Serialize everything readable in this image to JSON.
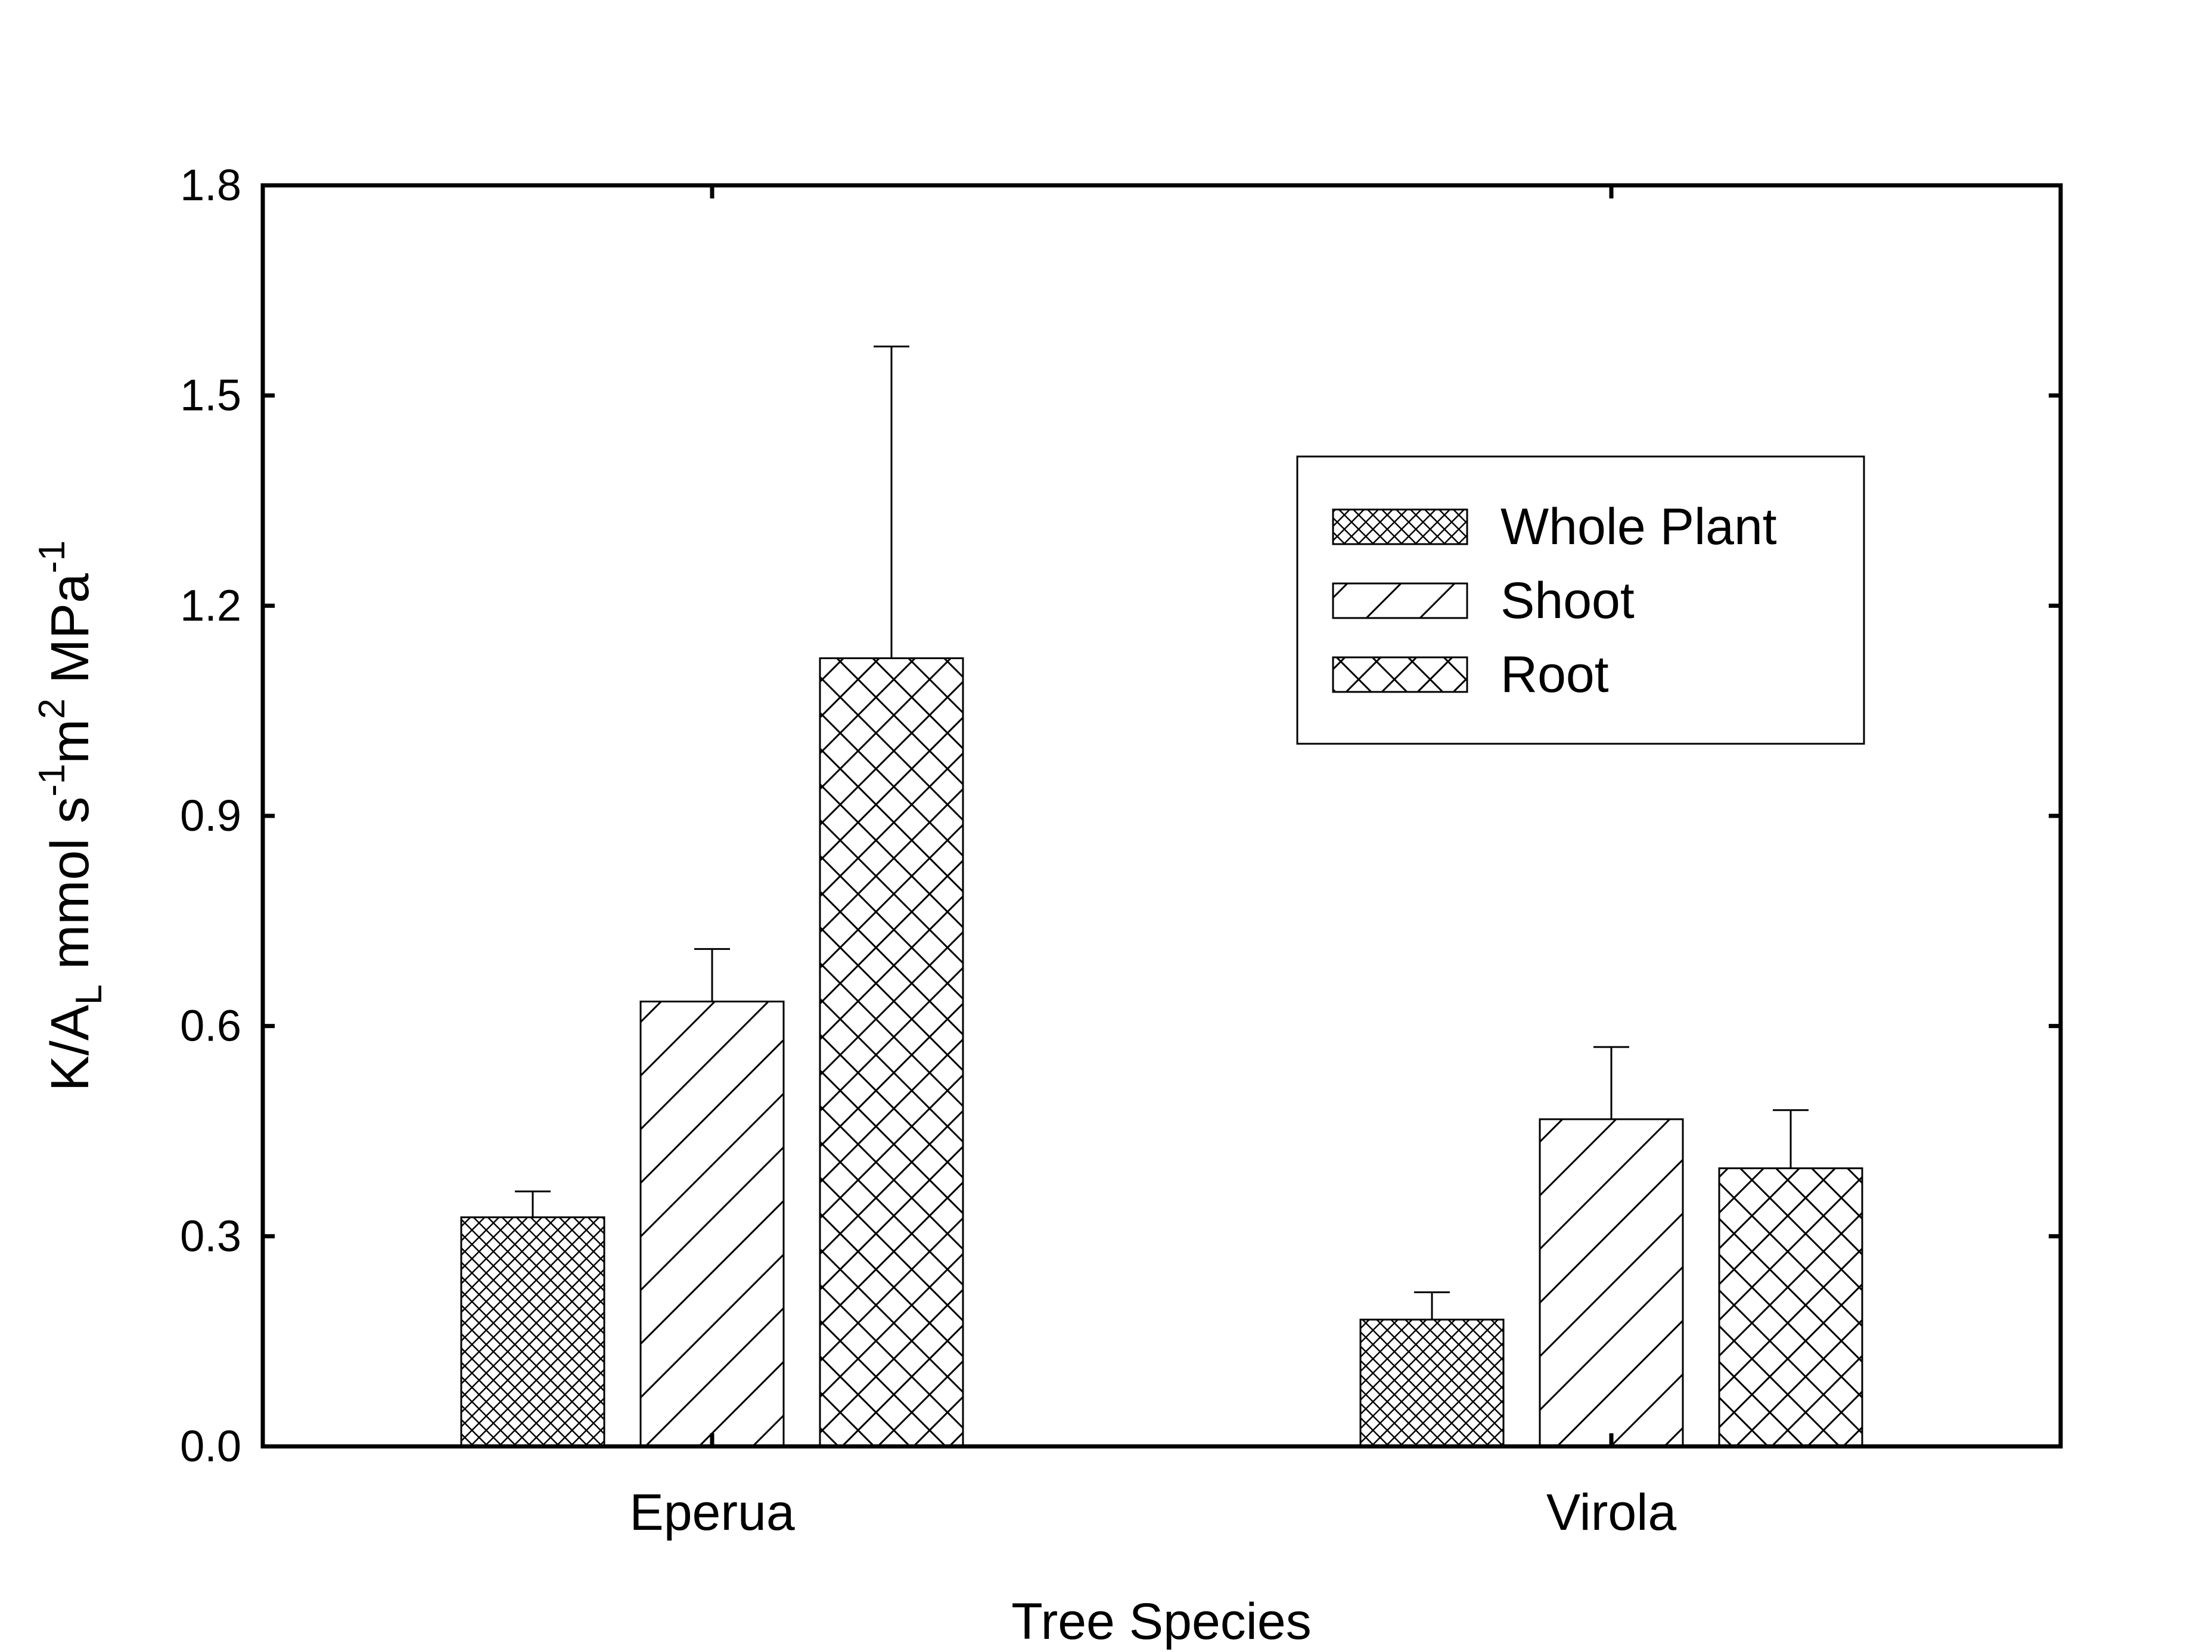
{
  "chart_data": {
    "type": "bar",
    "title": "",
    "xlabel": "Tree Species",
    "ylabel": {
      "base": "K/A",
      "sub": "L",
      "text1": " mmol s",
      "sup1": "-1",
      "text2": "m",
      "sup2": "2",
      "text3": " MPa",
      "sup3": "-1"
    },
    "ylim": [
      0,
      1.8
    ],
    "yticks": [
      0.0,
      0.3,
      0.6,
      0.9,
      1.2,
      1.5,
      1.8
    ],
    "ytick_labels": [
      "0.0",
      "0.3",
      "0.6",
      "0.9",
      "1.2",
      "1.5",
      "1.8"
    ],
    "categories": [
      "Eperua",
      "Virola"
    ],
    "grid": false,
    "legend_position": "top-right",
    "error_bars": "upper",
    "series": [
      {
        "name": "Whole Plant",
        "pattern": "fine-crosshatch",
        "values": [
          0.327,
          0.181
        ],
        "errors": [
          0.037,
          0.039
        ]
      },
      {
        "name": "Shoot",
        "pattern": "diagonal",
        "values": [
          0.635,
          0.467
        ],
        "errors": [
          0.075,
          0.103
        ]
      },
      {
        "name": "Root",
        "pattern": "coarse-crosshatch",
        "values": [
          1.125,
          0.397
        ],
        "errors": [
          0.445,
          0.083
        ]
      }
    ]
  }
}
